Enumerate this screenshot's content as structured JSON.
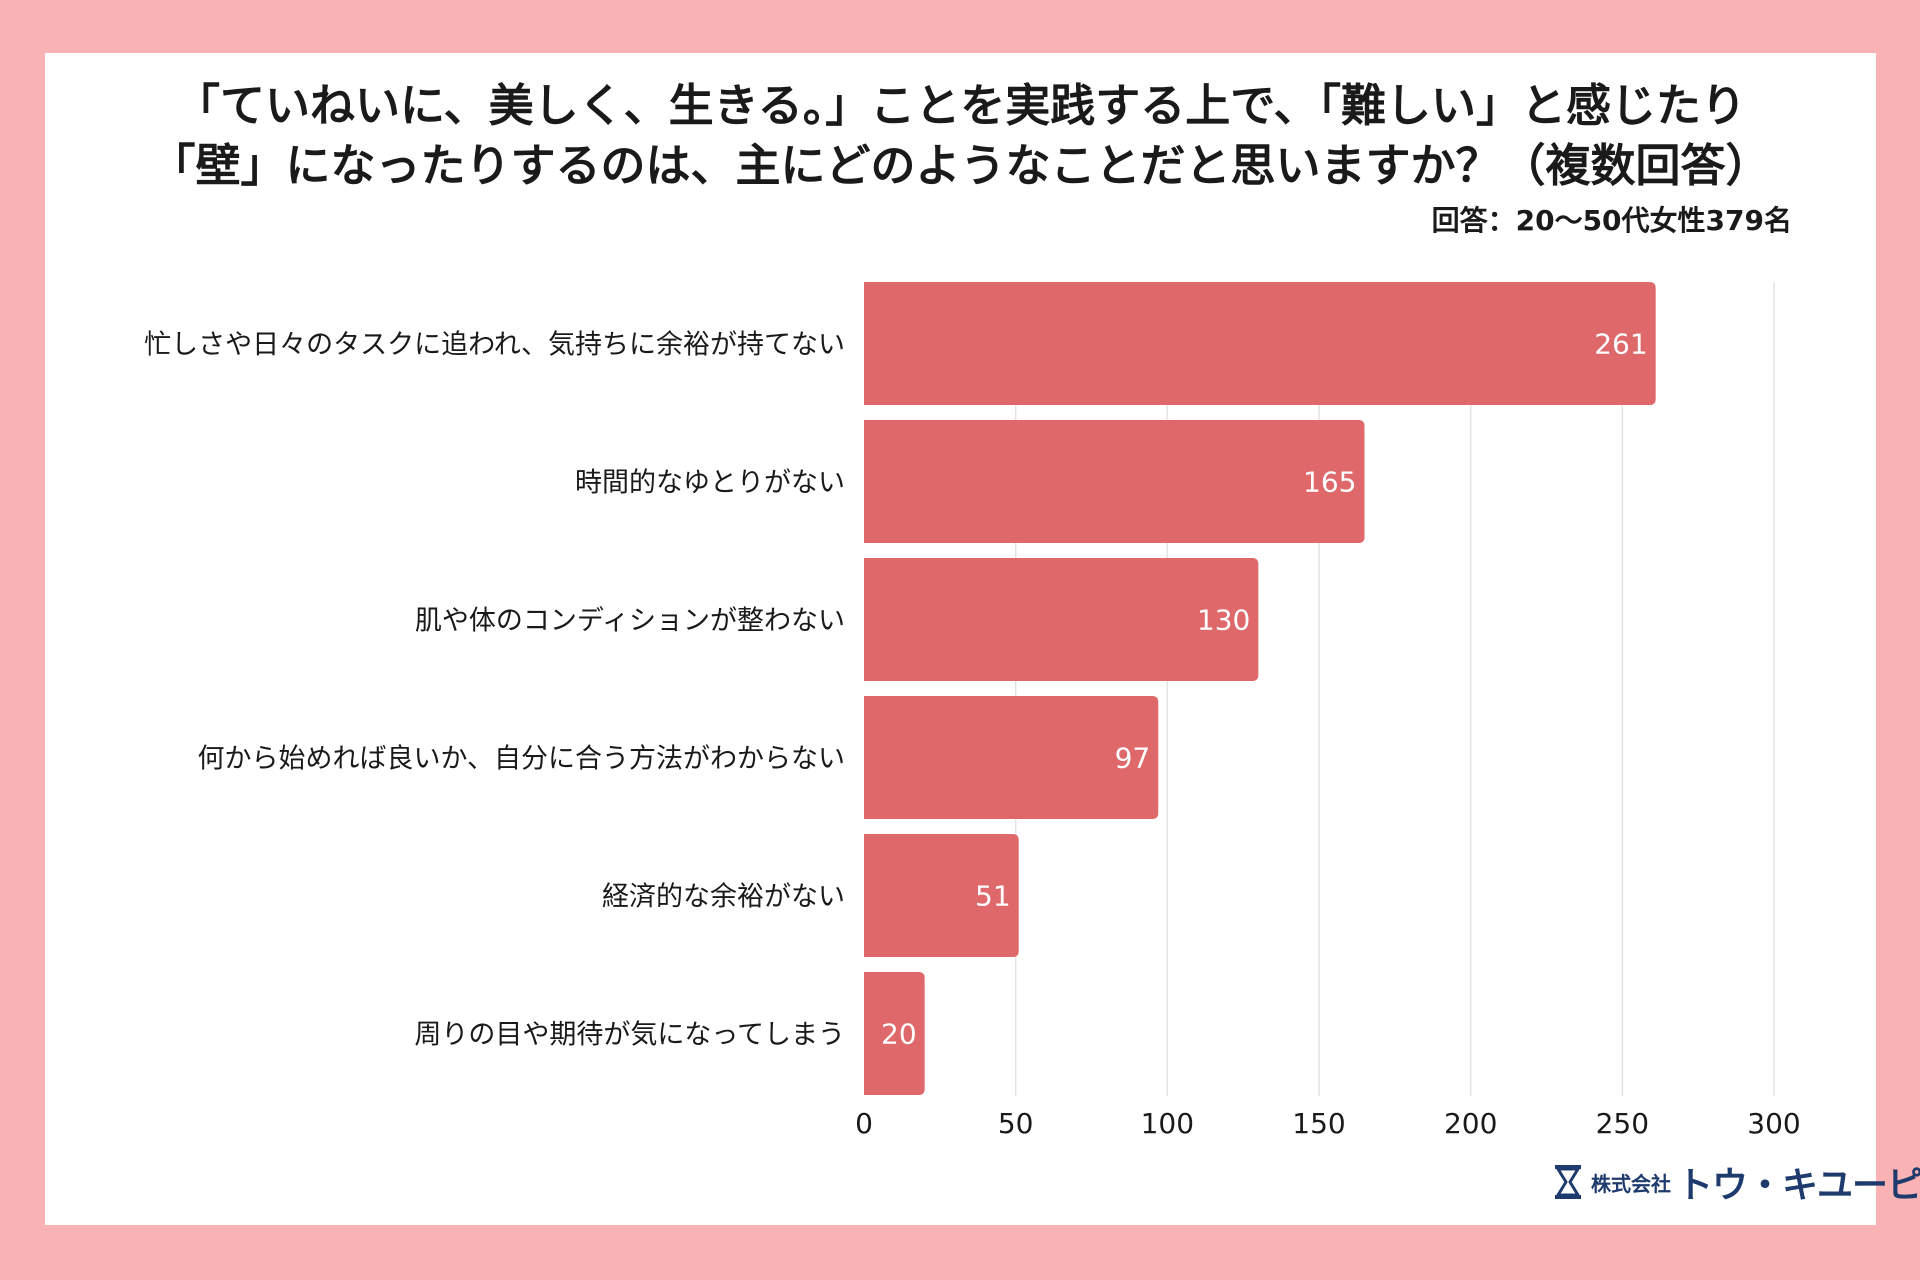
{
  "title_lines": [
    "「ていねいに、美しく、生きる。」ことを実践する上で、「難しい」と感じたり",
    "「壁」になったりするのは、主にどのようなことだと思いますか？（複数回答）"
  ],
  "respondent_note": "回答：20〜50代女性379名",
  "logo": {
    "company_prefix": "株式会社",
    "name": "トウ・キユーピー"
  },
  "colors": {
    "background": "#f9b3b4",
    "card": "#ffffff",
    "bar": "#df686b",
    "grid": "#e3e3e3",
    "text": "#1a1a1a",
    "value_label": "#ffffff",
    "logo": "#1f3b6e"
  },
  "chart_data": {
    "type": "bar",
    "orientation": "horizontal",
    "categories": [
      "忙しさや日々のタスクに追われ、気持ちに余裕が持てない",
      "時間的なゆとりがない",
      "肌や体のコンディションが整わない",
      "何から始めれば良いか、自分に合う方法がわからない",
      "経済的な余裕がない",
      "周りの目や期待が気になってしまう"
    ],
    "values": [
      261,
      165,
      130,
      97,
      51,
      20
    ],
    "xlim": [
      0,
      300
    ],
    "xticks": [
      0,
      50,
      100,
      150,
      200,
      250,
      300
    ],
    "grid": true,
    "legend": "none",
    "data_labels": true
  }
}
